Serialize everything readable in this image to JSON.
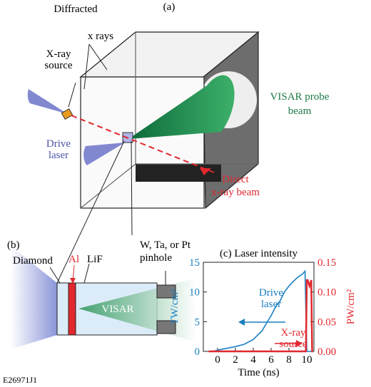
{
  "figure_id": "E26971J1",
  "panel_a": {
    "label": "(a)",
    "diffracted": [
      "Diffracted",
      "x rays"
    ],
    "xray_source": [
      "X-ray",
      "source"
    ],
    "visar_probe": [
      "VISAR probe",
      "beam"
    ],
    "drive_laser": [
      "Drive",
      "laser"
    ],
    "direct_beam": [
      "Direct",
      "x-ray beam"
    ]
  },
  "panel_b": {
    "label": "(b)",
    "diamond": "Diamond",
    "al": "Al",
    "lif": "LiF",
    "pinhole": [
      "W, Ta, or Pt",
      "pinhole"
    ],
    "visar": "VISAR"
  },
  "chart_data": {
    "type": "line",
    "title": "(c) Laser intensity",
    "x_label": "Time (ns)",
    "y_label": "TW/cm²",
    "y2_label": "PW/cm²",
    "xlim": [
      -1.6,
      10.8
    ],
    "xticks": [
      0,
      2,
      4,
      6,
      8,
      10
    ],
    "ylim": [
      0,
      15
    ],
    "yticks": [
      0,
      5,
      10,
      15
    ],
    "y2lim": [
      0,
      0.15
    ],
    "y2ticks": [
      {
        "value": 0,
        "label": "0.00"
      },
      0.05,
      {
        "value": 0.1,
        "label": "0.10"
      },
      0.15
    ],
    "series": [
      {
        "name": "Drive laser",
        "color": "#1a7fc1",
        "x": [
          -0.5,
          0,
          1,
          2,
          3,
          4,
          5,
          5.5,
          6,
          6.5,
          7,
          7.5,
          8,
          8.5,
          9,
          9.5,
          9.8,
          10,
          10.7
        ],
        "values": [
          0,
          0.2,
          0.5,
          0.8,
          1.2,
          2,
          3.5,
          4.8,
          6,
          7.5,
          8.5,
          10,
          11,
          11.8,
          12.5,
          13,
          13.5,
          0,
          0
        ]
      },
      {
        "name": "X-ray source",
        "color": "#e0282e",
        "axis": "y2",
        "x": [
          -1,
          9.9,
          10,
          10.1,
          10.3,
          10.5,
          10.6,
          10.7
        ],
        "values": [
          0,
          0,
          0.12,
          0.12,
          0.11,
          0.12,
          0,
          0
        ]
      }
    ]
  }
}
